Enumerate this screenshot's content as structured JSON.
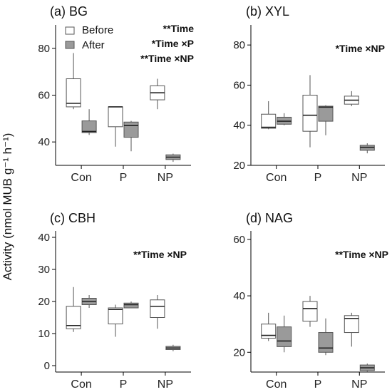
{
  "y_axis_label": "Activity (nmol MUB g⁻¹ h⁻¹)",
  "legend": {
    "before": "Before",
    "after": "After"
  },
  "colors": {
    "before": "#ffffff",
    "after": "#9a9a9a",
    "stroke": "#555555"
  },
  "chart_data": [
    {
      "type": "box",
      "title": "(a) BG",
      "annotations": [
        "**Time",
        "*Time ×P",
        "**Time ×NP"
      ],
      "categories": [
        "Con",
        "P",
        "NP"
      ],
      "ylim": [
        30,
        90
      ],
      "yticks": [
        40,
        60,
        80
      ],
      "series": [
        {
          "name": "Before",
          "boxes": [
            {
              "min": 54,
              "q1": 55,
              "median": 56.5,
              "q3": 67,
              "max": 78
            },
            {
              "min": 38,
              "q1": 46.5,
              "median": 55,
              "q3": 55,
              "max": 55
            },
            {
              "min": 54,
              "q1": 58,
              "median": 61,
              "q3": 64,
              "max": 67
            }
          ]
        },
        {
          "name": "After",
          "boxes": [
            {
              "min": 43,
              "q1": 44,
              "median": 44.5,
              "q3": 49,
              "max": 54
            },
            {
              "min": 36,
              "q1": 42,
              "median": 47,
              "q3": 48.5,
              "max": 49
            },
            {
              "min": 31.5,
              "q1": 32.5,
              "median": 33.5,
              "q3": 34.5,
              "max": 35
            }
          ]
        }
      ]
    },
    {
      "type": "box",
      "title": "(b) XYL",
      "annotations": [
        "*Time ×NP"
      ],
      "categories": [
        "Con",
        "P",
        "NP"
      ],
      "ylim": [
        20,
        90
      ],
      "yticks": [
        20,
        40,
        60,
        80
      ],
      "series": [
        {
          "name": "Before",
          "boxes": [
            {
              "min": 38,
              "q1": 38.5,
              "median": 39,
              "q3": 45.5,
              "max": 52
            },
            {
              "min": 29,
              "q1": 37,
              "median": 45,
              "q3": 55,
              "max": 65
            },
            {
              "min": 49.5,
              "q1": 50.5,
              "median": 52.5,
              "q3": 54.5,
              "max": 57
            }
          ]
        },
        {
          "name": "After",
          "boxes": [
            {
              "min": 40,
              "q1": 40.5,
              "median": 42,
              "q3": 44,
              "max": 46
            },
            {
              "min": 35,
              "q1": 42,
              "median": 49,
              "q3": 49.5,
              "max": 50
            },
            {
              "min": 26,
              "q1": 27.5,
              "median": 29,
              "q3": 30,
              "max": 31
            }
          ]
        }
      ]
    },
    {
      "type": "box",
      "title": "(c) CBH",
      "annotations": [
        "**Time ×NP"
      ],
      "categories": [
        "Con",
        "P",
        "NP"
      ],
      "ylim": [
        -2,
        42
      ],
      "yticks": [
        0,
        10,
        20,
        30,
        40
      ],
      "series": [
        {
          "name": "Before",
          "boxes": [
            {
              "min": 10.5,
              "q1": 11.5,
              "median": 12.5,
              "q3": 18.5,
              "max": 24.5
            },
            {
              "min": 9,
              "q1": 13,
              "median": 17.5,
              "q3": 18,
              "max": 19
            },
            {
              "min": 11.5,
              "q1": 15,
              "median": 18.5,
              "q3": 20.5,
              "max": 22
            }
          ]
        },
        {
          "name": "After",
          "boxes": [
            {
              "min": 18,
              "q1": 19,
              "median": 20,
              "q3": 21,
              "max": 22
            },
            {
              "min": 18,
              "q1": 18,
              "median": 19,
              "q3": 19.5,
              "max": 20
            },
            {
              "min": 4.5,
              "q1": 5,
              "median": 5.5,
              "q3": 6,
              "max": 6.5
            }
          ]
        }
      ]
    },
    {
      "type": "box",
      "title": "(d) NAG",
      "annotations": [
        "**Time ×NP"
      ],
      "categories": [
        "Con",
        "P",
        "NP"
      ],
      "ylim": [
        13,
        63
      ],
      "yticks": [
        20,
        40,
        60
      ],
      "series": [
        {
          "name": "Before",
          "boxes": [
            {
              "min": 24,
              "q1": 25,
              "median": 26,
              "q3": 30,
              "max": 34
            },
            {
              "min": 29,
              "q1": 31,
              "median": 35.5,
              "q3": 38,
              "max": 40
            },
            {
              "min": 22,
              "q1": 27,
              "median": 32,
              "q3": 33,
              "max": 34
            }
          ]
        },
        {
          "name": "After",
          "boxes": [
            {
              "min": 20,
              "q1": 22,
              "median": 24,
              "q3": 29,
              "max": 33
            },
            {
              "min": 19,
              "q1": 20,
              "median": 21.5,
              "q3": 27,
              "max": 32
            },
            {
              "min": 13,
              "q1": 13.5,
              "median": 14.5,
              "q3": 15.5,
              "max": 16
            }
          ]
        }
      ]
    }
  ]
}
